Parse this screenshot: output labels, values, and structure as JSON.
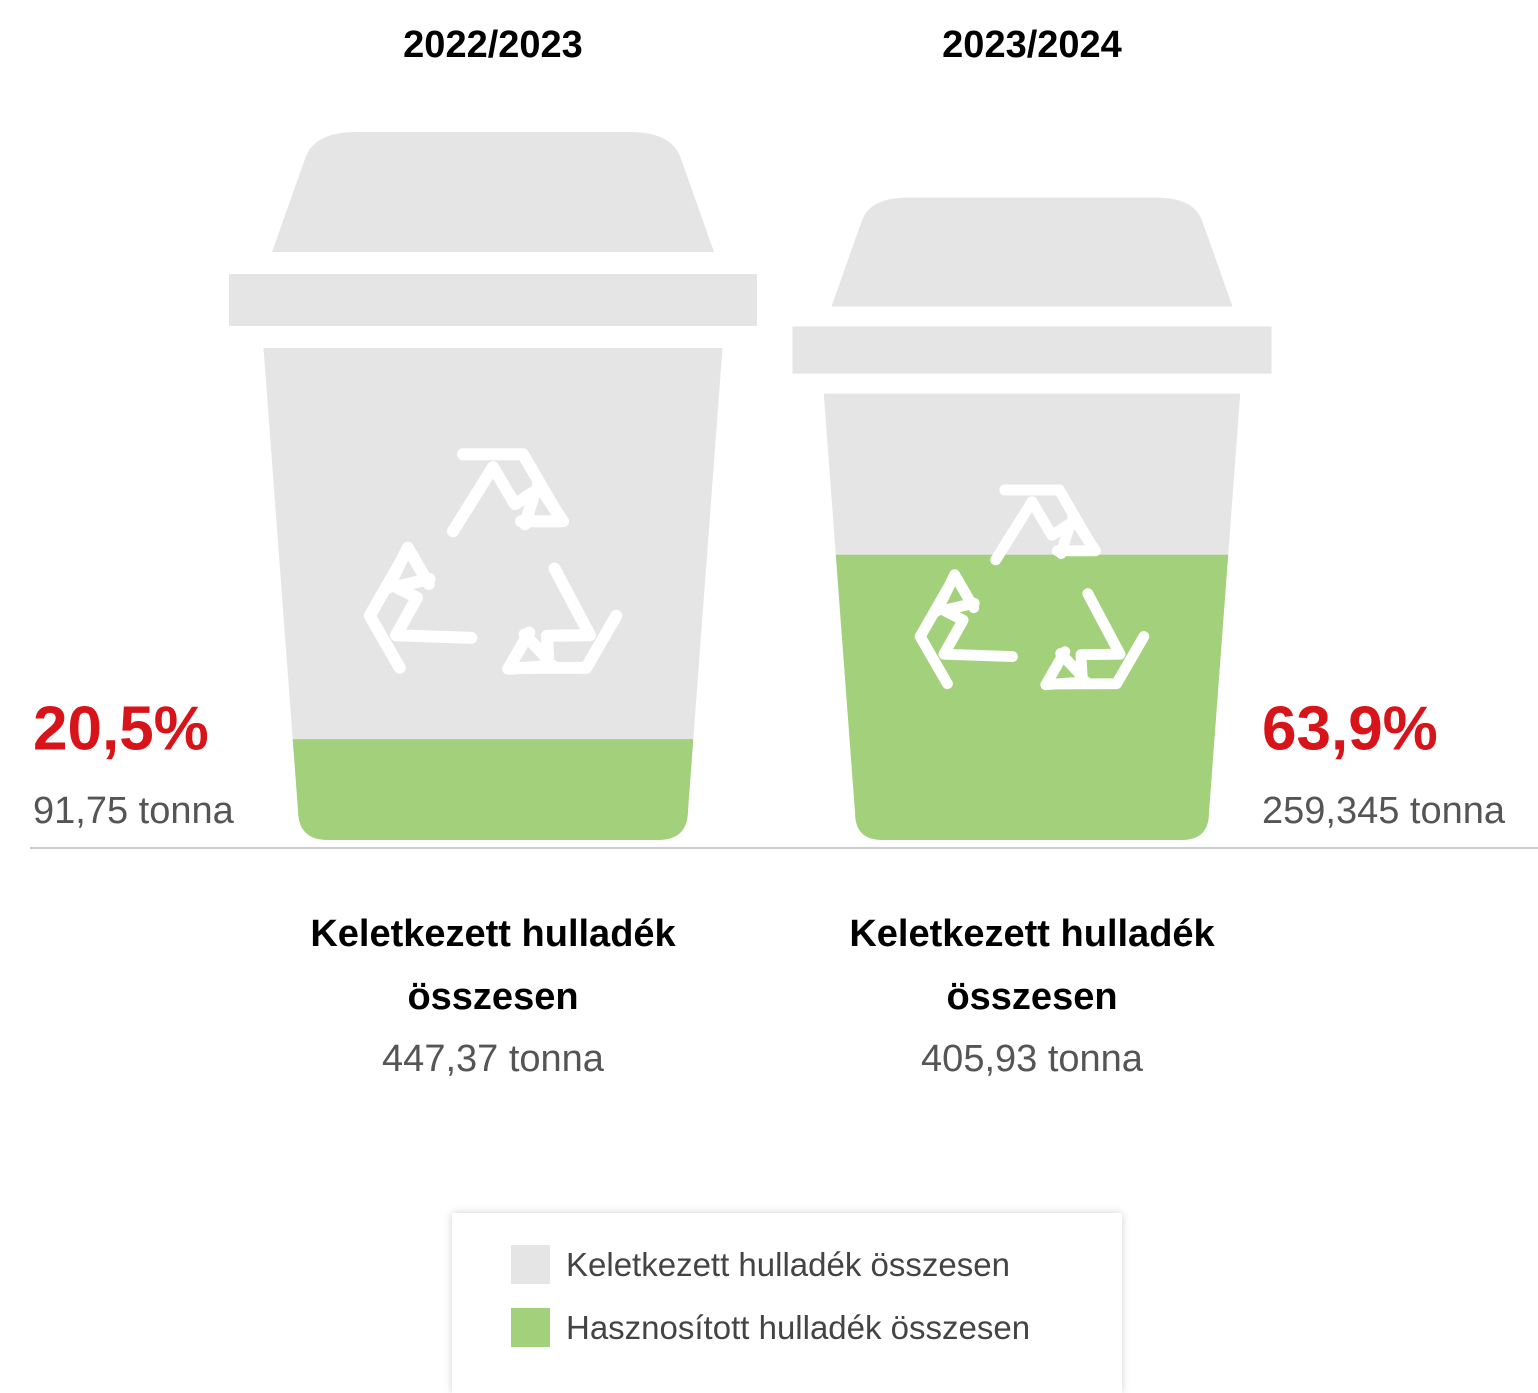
{
  "chart_data": {
    "type": "pictorial-bin",
    "categories": [
      "2022/2023",
      "2023/2024"
    ],
    "series": [
      {
        "name": "Keletkezett hulladék összesen",
        "color": "#e5e5e5",
        "values": [
          447.37,
          405.93
        ],
        "value_labels": [
          "447,37 tonna",
          "405,93 tonna"
        ]
      },
      {
        "name": "Hasznosított hulladék összesen",
        "color": "#a3d07a",
        "values": [
          91.75,
          259.345
        ],
        "value_labels": [
          "91,75 tonna",
          "259,345 tonna"
        ]
      }
    ],
    "share": {
      "values": [
        20.5,
        63.9
      ],
      "value_labels": [
        "20,5%",
        "63,9%"
      ],
      "color": "#d7141a"
    }
  }
}
